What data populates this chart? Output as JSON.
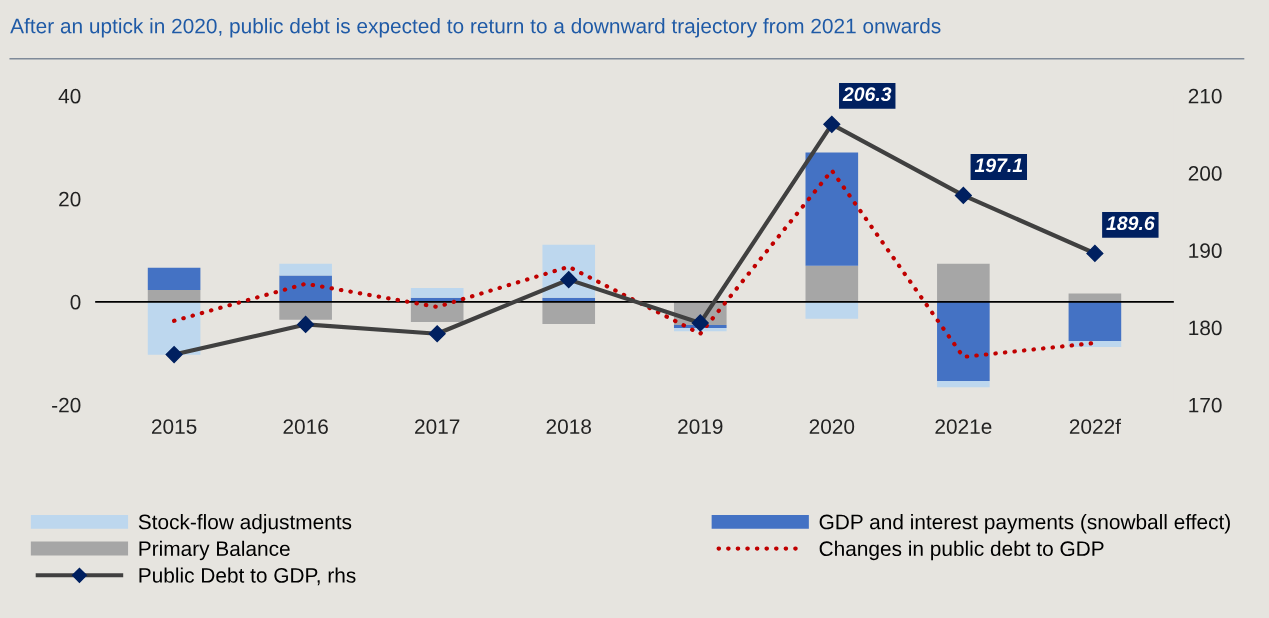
{
  "chart_data": {
    "type": "bar",
    "title": "After an uptick in 2020, public debt is expected to return to a downward trajectory from 2021 onwards",
    "categories": [
      "2015",
      "2016",
      "2017",
      "2018",
      "2019",
      "2020",
      "2021e",
      "2022f"
    ],
    "stacked": true,
    "series": [
      {
        "name": "Primary Balance",
        "color": "#a6a6a6",
        "values": [
          2.3,
          -3.5,
          -3.9,
          -4.3,
          -4.5,
          7.0,
          7.4,
          1.6
        ]
      },
      {
        "name": "GDP and interest payments (snowball effect)",
        "color": "#4472c4",
        "values": [
          4.3,
          5.1,
          0.8,
          0.8,
          -0.6,
          22.0,
          -15.4,
          -7.6
        ]
      },
      {
        "name": "Stock-flow adjustments",
        "color": "#bdd7ee",
        "values": [
          -10.3,
          2.3,
          1.9,
          10.3,
          -0.6,
          -3.3,
          -1.2,
          -1.2
        ]
      },
      {
        "name": "Changes in public debt to GDP",
        "type": "line",
        "color": "#c00000",
        "line_style": "dotted",
        "marker": "none",
        "values": [
          -3.7,
          3.5,
          -1.0,
          6.8,
          -6.2,
          25.5,
          -10.7,
          -8.0
        ]
      },
      {
        "name": "Public Debt to GDP, rhs",
        "type": "line",
        "axis": "y2",
        "color": "#404040",
        "line_style": "solid",
        "marker": "diamond",
        "values": [
          176.5,
          180.4,
          179.2,
          186.2,
          180.6,
          206.3,
          197.1,
          189.6
        ],
        "value_labels": [
          null,
          null,
          null,
          null,
          null,
          "206.3",
          "197.1",
          "189.6"
        ]
      }
    ],
    "ylim": [
      -20,
      40
    ],
    "yticks": [
      -20,
      0,
      20,
      40
    ],
    "y2lim": [
      170,
      210
    ],
    "y2ticks": [
      170,
      180,
      190,
      200,
      210
    ],
    "ref_lines": [
      {
        "axis": "y",
        "value": 0,
        "color": "#000000"
      }
    ],
    "grid": false,
    "legend": "bottom"
  }
}
